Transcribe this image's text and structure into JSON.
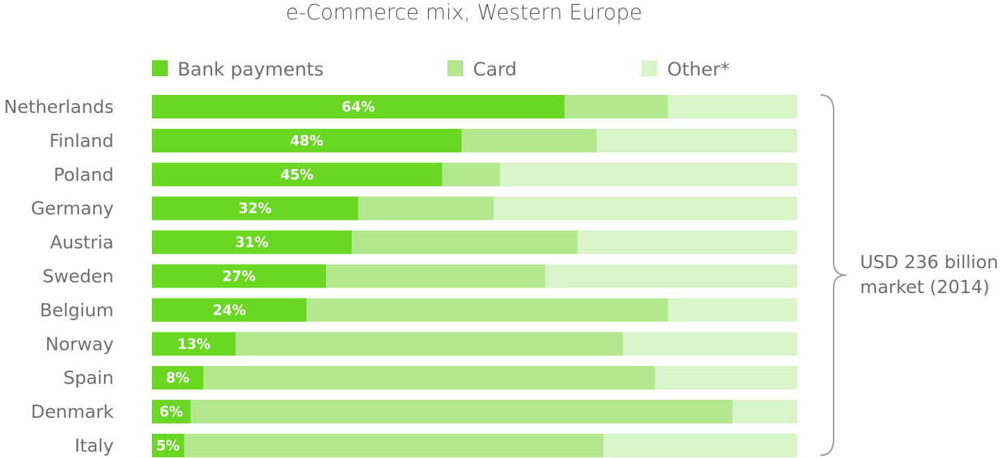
{
  "chart_data": {
    "type": "bar",
    "orientation": "horizontal",
    "stacked": true,
    "title": "e-Commerce mix, Western Europe",
    "categories": [
      "Netherlands",
      "Finland",
      "Poland",
      "Germany",
      "Austria",
      "Sweden",
      "Belgium",
      "Norway",
      "Spain",
      "Denmark",
      "Italy"
    ],
    "series": [
      {
        "name": "Bank payments",
        "color": "#6ad723",
        "values": [
          64,
          48,
          45,
          32,
          31,
          27,
          24,
          13,
          8,
          6,
          5
        ]
      },
      {
        "name": "Card",
        "color": "#b2e88e",
        "values": [
          16,
          21,
          9,
          21,
          35,
          34,
          56,
          60,
          70,
          84,
          65
        ]
      },
      {
        "name": "Other*",
        "color": "#d9f4c8",
        "values": [
          20,
          31,
          46,
          47,
          34,
          39,
          20,
          27,
          22,
          10,
          30
        ]
      }
    ],
    "data_labels": [
      "64%",
      "48%",
      "45%",
      "32%",
      "31%",
      "27%",
      "24%",
      "13%",
      "8%",
      "6%",
      "5%"
    ],
    "xlim": [
      0,
      100
    ],
    "legend_position": "top",
    "grid": false,
    "annotation": {
      "line1": "USD 236 billion",
      "line2": "market (2014)"
    }
  }
}
